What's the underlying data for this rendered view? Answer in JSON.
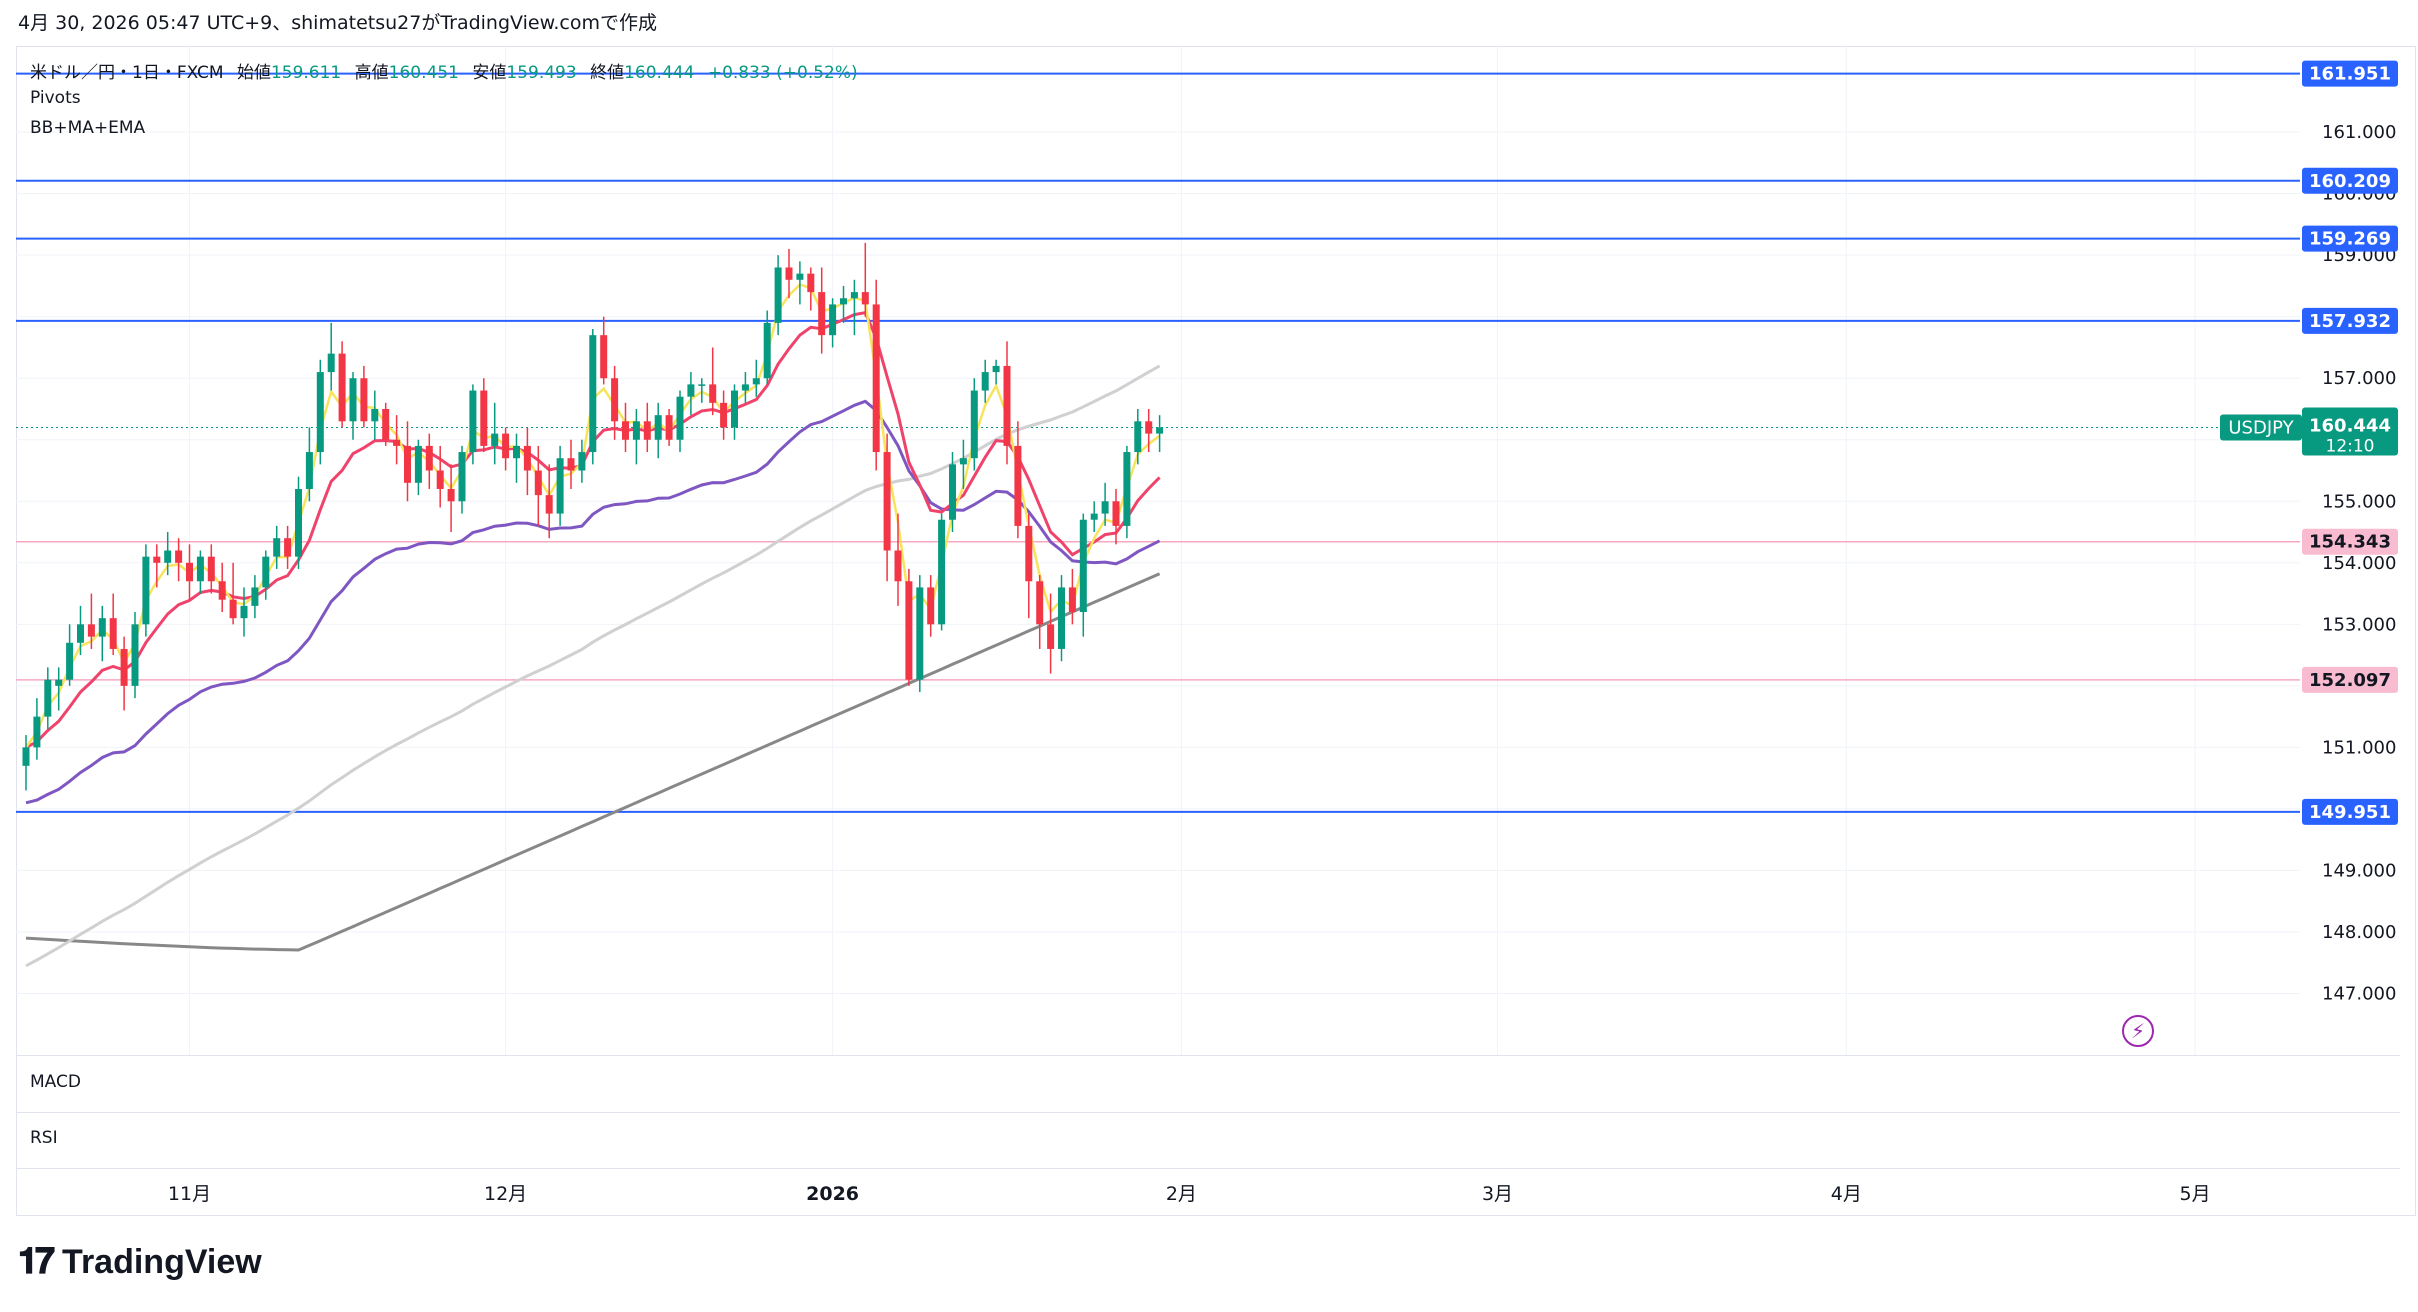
{
  "header": {
    "text": "4月 30, 2026 05:47 UTC+9、shimatetsu27がTradingView.comで作成"
  },
  "legend": {
    "symbol_line": "米ドル／円・1日・FXCM",
    "open_label": "始値",
    "open": "159.611",
    "high_label": "高値",
    "high": "160.451",
    "low_label": "安値",
    "low": "159.493",
    "close_label": "終値",
    "close": "160.444",
    "change": "+0.833 (+0.52%)",
    "indicator1": "Pivots",
    "indicator2": "BB+MA+EMA"
  },
  "panes": {
    "macd": "MACD",
    "rsi": "RSI"
  },
  "footer": {
    "brand": "TradingView"
  },
  "colors": {
    "up": "#089981",
    "down": "#f23645",
    "pivot_blue": "#2962ff",
    "pivot_pink": "#f7a8c0",
    "ema_yellow": "#f7e35c",
    "ema_orange": "#f5a742",
    "ma_red": "#f0436c",
    "ma_purple": "#7e57c2",
    "ma_lightgray": "#d0d0d0",
    "ma_gray": "#888888"
  },
  "chart_data": {
    "type": "candlestick",
    "symbol": "USDJPY",
    "last_price": "160.444",
    "countdown": "12:10",
    "y_ticks": [
      147.0,
      148.0,
      149.0,
      150.0,
      151.0,
      152.0,
      153.0,
      154.0,
      155.0,
      156.0,
      157.0,
      158.0,
      159.0,
      160.0,
      161.0
    ],
    "ylim": [
      146.0,
      162.4
    ],
    "x_ticks": [
      {
        "label": "11月",
        "index": 15
      },
      {
        "label": "12月",
        "index": 44
      },
      {
        "label": "2026",
        "index": 74
      },
      {
        "label": "2月",
        "index": 106
      },
      {
        "label": "3月",
        "index": 135
      },
      {
        "label": "4月",
        "index": 167
      },
      {
        "label": "5月",
        "index": 199
      }
    ],
    "pivot_levels": [
      {
        "value": 161.951,
        "label": "161.951",
        "color": "blue"
      },
      {
        "value": 160.209,
        "label": "160.209",
        "color": "blue"
      },
      {
        "value": 159.269,
        "label": "159.269",
        "color": "blue"
      },
      {
        "value": 157.932,
        "label": "157.932",
        "color": "blue"
      },
      {
        "value": 154.343,
        "label": "154.343",
        "color": "pink"
      },
      {
        "value": 152.097,
        "label": "152.097",
        "color": "pink"
      },
      {
        "value": 149.951,
        "label": "149.951",
        "color": "blue"
      }
    ],
    "ohlc": [
      [
        150.7,
        151.2,
        150.3,
        151.0
      ],
      [
        151.0,
        151.8,
        150.8,
        151.5
      ],
      [
        151.5,
        152.3,
        151.3,
        152.1
      ],
      [
        152.0,
        152.3,
        151.6,
        152.1
      ],
      [
        152.1,
        153.0,
        152.0,
        152.7
      ],
      [
        152.7,
        153.3,
        152.5,
        153.0
      ],
      [
        153.0,
        153.5,
        152.6,
        152.8
      ],
      [
        152.8,
        153.3,
        152.4,
        153.1
      ],
      [
        153.1,
        153.5,
        152.5,
        152.6
      ],
      [
        152.6,
        152.8,
        151.6,
        152.0
      ],
      [
        152.0,
        153.2,
        151.8,
        153.0
      ],
      [
        153.0,
        154.3,
        152.8,
        154.1
      ],
      [
        154.1,
        154.3,
        153.6,
        154.0
      ],
      [
        154.0,
        154.5,
        153.8,
        154.2
      ],
      [
        154.2,
        154.4,
        153.7,
        154.0
      ],
      [
        154.0,
        154.3,
        153.4,
        153.7
      ],
      [
        153.7,
        154.2,
        153.5,
        154.1
      ],
      [
        154.1,
        154.3,
        153.5,
        153.7
      ],
      [
        153.7,
        154.0,
        153.2,
        153.4
      ],
      [
        153.4,
        154.0,
        153.0,
        153.1
      ],
      [
        153.1,
        153.6,
        152.8,
        153.3
      ],
      [
        153.3,
        153.8,
        153.1,
        153.6
      ],
      [
        153.6,
        154.2,
        153.4,
        154.1
      ],
      [
        154.1,
        154.6,
        153.9,
        154.4
      ],
      [
        154.4,
        154.6,
        153.9,
        154.1
      ],
      [
        154.1,
        155.4,
        153.9,
        155.2
      ],
      [
        155.2,
        156.2,
        155.0,
        155.8
      ],
      [
        155.8,
        157.3,
        155.6,
        157.1
      ],
      [
        157.1,
        157.9,
        156.8,
        157.4
      ],
      [
        157.4,
        157.6,
        156.2,
        156.3
      ],
      [
        156.3,
        157.1,
        156.0,
        157.0
      ],
      [
        157.0,
        157.2,
        156.2,
        156.3
      ],
      [
        156.3,
        156.8,
        156.0,
        156.5
      ],
      [
        156.5,
        156.6,
        155.9,
        156.0
      ],
      [
        156.0,
        156.4,
        155.6,
        155.9
      ],
      [
        155.9,
        156.3,
        155.0,
        155.3
      ],
      [
        155.3,
        156.0,
        155.1,
        155.9
      ],
      [
        155.9,
        156.1,
        155.2,
        155.5
      ],
      [
        155.5,
        155.9,
        154.9,
        155.2
      ],
      [
        155.2,
        155.6,
        154.5,
        155.0
      ],
      [
        155.0,
        155.9,
        154.8,
        155.8
      ],
      [
        155.8,
        156.9,
        155.6,
        156.8
      ],
      [
        156.8,
        157.0,
        155.8,
        155.9
      ],
      [
        155.9,
        156.6,
        155.6,
        156.1
      ],
      [
        156.1,
        156.2,
        155.5,
        155.7
      ],
      [
        155.7,
        156.1,
        155.3,
        155.9
      ],
      [
        155.9,
        156.2,
        155.1,
        155.5
      ],
      [
        155.5,
        155.9,
        154.6,
        155.1
      ],
      [
        155.1,
        155.6,
        154.4,
        154.8
      ],
      [
        154.8,
        155.9,
        154.6,
        155.7
      ],
      [
        155.7,
        156.0,
        155.2,
        155.5
      ],
      [
        155.5,
        156.0,
        155.3,
        155.8
      ],
      [
        155.8,
        157.8,
        155.6,
        157.7
      ],
      [
        157.7,
        158.0,
        156.9,
        157.0
      ],
      [
        157.0,
        157.2,
        156.0,
        156.3
      ],
      [
        156.3,
        156.6,
        155.8,
        156.0
      ],
      [
        156.0,
        156.5,
        155.6,
        156.3
      ],
      [
        156.3,
        156.6,
        155.8,
        156.0
      ],
      [
        156.0,
        156.6,
        155.7,
        156.4
      ],
      [
        156.4,
        156.5,
        155.9,
        156.0
      ],
      [
        156.0,
        156.8,
        155.8,
        156.7
      ],
      [
        156.7,
        157.1,
        156.4,
        156.9
      ],
      [
        156.9,
        157.0,
        156.6,
        156.9
      ],
      [
        156.9,
        157.5,
        156.4,
        156.6
      ],
      [
        156.6,
        156.8,
        156.0,
        156.2
      ],
      [
        156.2,
        156.9,
        156.0,
        156.8
      ],
      [
        156.8,
        157.1,
        156.6,
        156.9
      ],
      [
        156.9,
        157.3,
        156.7,
        157.0
      ],
      [
        157.0,
        158.1,
        156.9,
        157.9
      ],
      [
        157.9,
        159.0,
        157.7,
        158.8
      ],
      [
        158.8,
        159.1,
        158.3,
        158.6
      ],
      [
        158.6,
        158.9,
        158.2,
        158.7
      ],
      [
        158.7,
        158.8,
        158.1,
        158.4
      ],
      [
        158.4,
        158.8,
        157.4,
        157.7
      ],
      [
        157.7,
        158.3,
        157.5,
        158.2
      ],
      [
        158.2,
        158.5,
        157.9,
        158.3
      ],
      [
        158.3,
        158.6,
        157.7,
        158.4
      ],
      [
        158.4,
        159.2,
        158.0,
        158.2
      ],
      [
        158.2,
        158.6,
        155.5,
        155.8
      ],
      [
        155.8,
        156.1,
        153.7,
        154.2
      ],
      [
        154.2,
        154.8,
        153.3,
        153.7
      ],
      [
        153.7,
        153.9,
        152.0,
        152.1
      ],
      [
        152.1,
        153.8,
        151.9,
        153.6
      ],
      [
        153.6,
        153.8,
        152.8,
        153.0
      ],
      [
        153.0,
        154.8,
        152.9,
        154.7
      ],
      [
        154.7,
        155.8,
        154.5,
        155.6
      ],
      [
        155.6,
        156.0,
        155.2,
        155.7
      ],
      [
        155.7,
        157.0,
        155.5,
        156.8
      ],
      [
        156.8,
        157.3,
        156.6,
        157.1
      ],
      [
        157.1,
        157.3,
        156.9,
        157.2
      ],
      [
        157.2,
        157.6,
        155.6,
        155.9
      ],
      [
        155.9,
        156.3,
        154.4,
        154.6
      ],
      [
        154.6,
        154.8,
        153.1,
        153.7
      ],
      [
        153.7,
        153.8,
        152.6,
        153.0
      ],
      [
        153.0,
        153.5,
        152.2,
        152.6
      ],
      [
        152.6,
        153.8,
        152.4,
        153.6
      ],
      [
        153.6,
        153.9,
        153.0,
        153.2
      ],
      [
        153.2,
        154.8,
        152.8,
        154.7
      ],
      [
        154.7,
        155.0,
        154.5,
        154.8
      ],
      [
        154.8,
        155.3,
        154.6,
        155.0
      ],
      [
        155.0,
        155.2,
        154.3,
        154.6
      ],
      [
        154.6,
        155.9,
        154.4,
        155.8
      ],
      [
        155.8,
        156.5,
        155.6,
        156.3
      ],
      [
        156.3,
        156.5,
        155.8,
        156.1
      ],
      [
        156.1,
        156.4,
        155.8,
        156.2
      ]
    ]
  }
}
